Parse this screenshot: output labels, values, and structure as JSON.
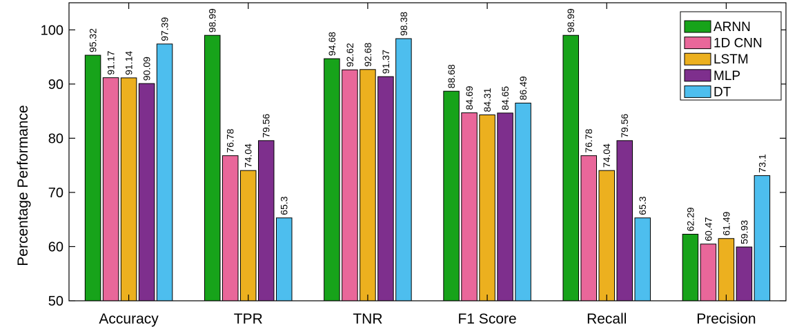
{
  "chart_data": {
    "type": "bar",
    "categories": [
      "Accuracy",
      "TPR",
      "TNR",
      "F1 Score",
      "Recall",
      "Precision"
    ],
    "series": [
      {
        "name": "ARNN",
        "color": "#17a31a",
        "values": [
          95.32,
          98.99,
          94.68,
          88.68,
          98.99,
          62.29
        ]
      },
      {
        "name": "1D CNN",
        "color": "#e9679a",
        "values": [
          91.17,
          76.78,
          92.62,
          84.69,
          76.78,
          60.47
        ]
      },
      {
        "name": "LSTM",
        "color": "#ecb01f",
        "values": [
          91.14,
          74.04,
          92.68,
          84.31,
          74.04,
          61.49
        ]
      },
      {
        "name": "MLP",
        "color": "#7e2f8d",
        "values": [
          90.09,
          79.56,
          91.37,
          84.65,
          79.56,
          59.93
        ]
      },
      {
        "name": "DT",
        "color": "#4dbeee",
        "values": [
          97.39,
          65.3,
          98.38,
          86.49,
          65.3,
          73.1
        ]
      }
    ],
    "data_labels": [
      [
        "95.32",
        "98.99",
        "94.68",
        "88.68",
        "98.99",
        "62.29"
      ],
      [
        "91.17",
        "76.78",
        "92.62",
        "84.69",
        "76.78",
        "60.47"
      ],
      [
        "91.14",
        "74.04",
        "92.68",
        "84.31",
        "74.04",
        "61.49"
      ],
      [
        "90.09",
        "79.56",
        "91.37",
        "84.65",
        "79.56",
        "59.93"
      ],
      [
        "97.39",
        "65.3",
        "98.38",
        "86.49",
        "65.3",
        "73.1"
      ]
    ],
    "yticks": [
      "50",
      "60",
      "70",
      "80",
      "90",
      "100"
    ],
    "ylim": [
      50,
      105
    ],
    "xlabel": "",
    "ylabel": "Percentage Performance",
    "legend_position": "top-right",
    "grid": false
  }
}
